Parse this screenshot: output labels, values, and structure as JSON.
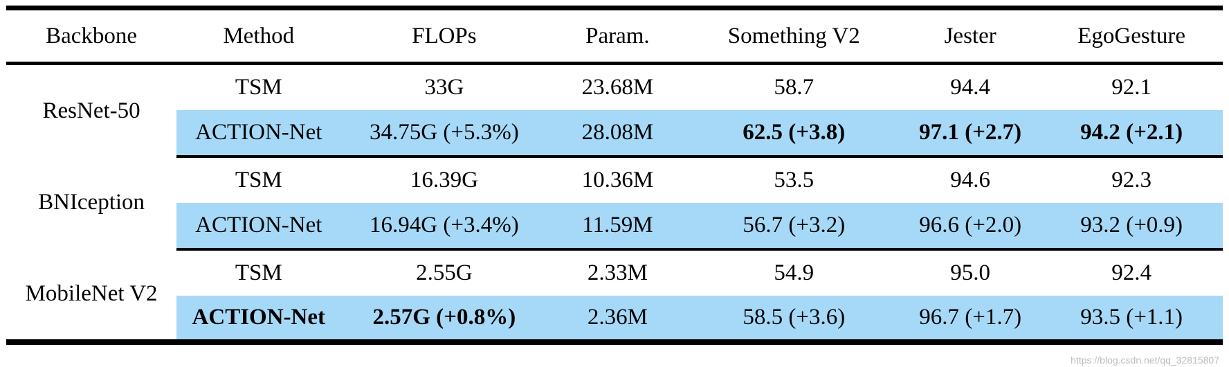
{
  "table": {
    "headers": [
      "Backbone",
      "Method",
      "FLOPs",
      "Param.",
      "Something V2",
      "Jester",
      "EgoGesture"
    ],
    "highlight_color": "#a6d9f7",
    "groups": [
      {
        "backbone": "ResNet-50",
        "rows": [
          {
            "method": "TSM",
            "flops": "33G",
            "param": "23.68M",
            "something_v2": "58.7",
            "jester": "94.4",
            "egogesture": "92.1"
          },
          {
            "method": "ACTION-Net",
            "flops": "34.75G (+5.3%)",
            "param": "28.08M",
            "something_v2": "62.5 (+3.8)",
            "jester": "97.1 (+2.7)",
            "egogesture": "94.2 (+2.1)"
          }
        ]
      },
      {
        "backbone": "BNIception",
        "rows": [
          {
            "method": "TSM",
            "flops": "16.39G",
            "param": "10.36M",
            "something_v2": "53.5",
            "jester": "94.6",
            "egogesture": "92.3"
          },
          {
            "method": "ACTION-Net",
            "flops": "16.94G (+3.4%)",
            "param": "11.59M",
            "something_v2": "56.7 (+3.2)",
            "jester": "96.6 (+2.0)",
            "egogesture": "93.2 (+0.9)"
          }
        ]
      },
      {
        "backbone": "MobileNet V2",
        "rows": [
          {
            "method": "TSM",
            "flops": "2.55G",
            "param": "2.33M",
            "something_v2": "54.9",
            "jester": "95.0",
            "egogesture": "92.4"
          },
          {
            "method": "ACTION-Net",
            "flops": "2.57G (+0.8%)",
            "param": "2.36M",
            "something_v2": "58.5 (+3.6)",
            "jester": "96.7 (+1.7)",
            "egogesture": "93.5 (+1.1)"
          }
        ]
      }
    ]
  },
  "watermark": "https://blog.csdn.net/qq_32815807"
}
